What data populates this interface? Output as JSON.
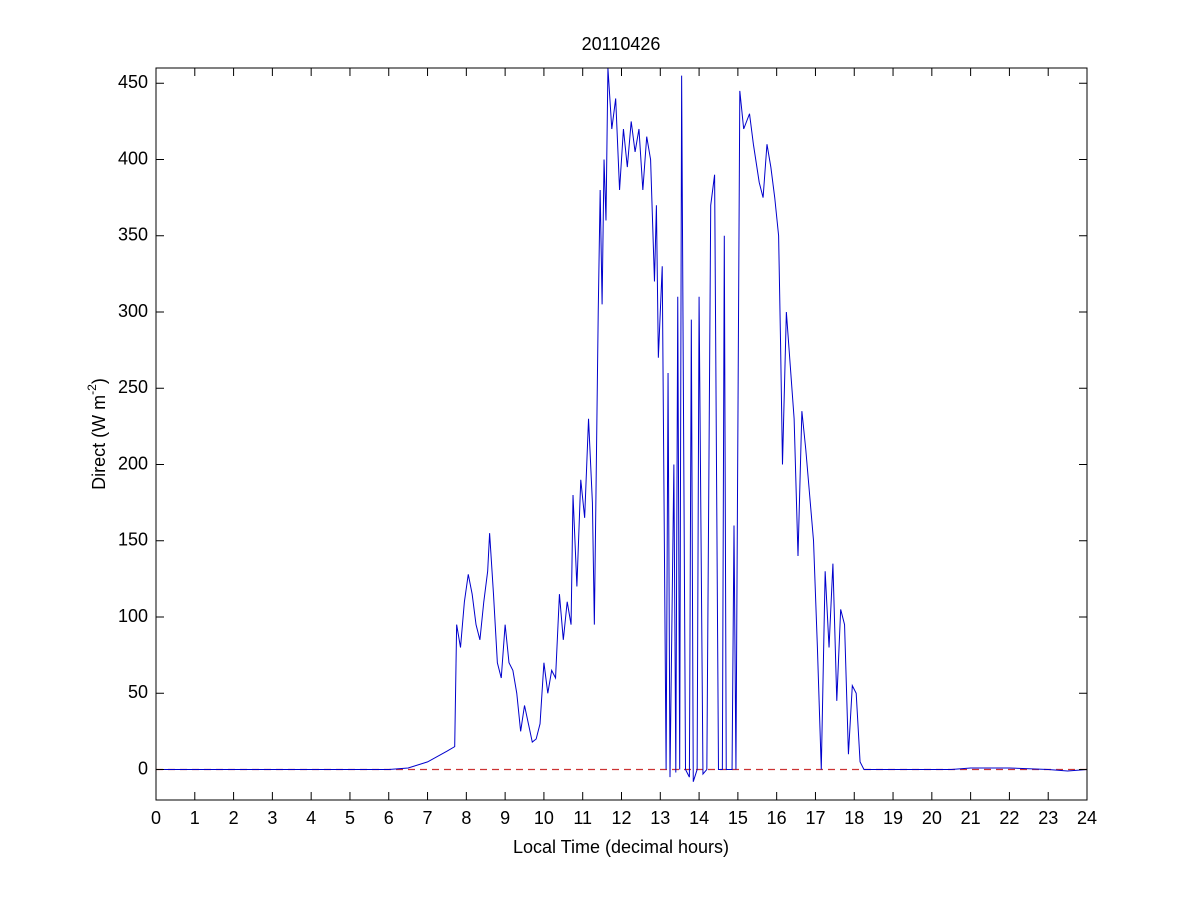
{
  "chart_data": {
    "type": "line",
    "title": "20110426",
    "xlabel": "Local Time (decimal hours)",
    "ylabel": [
      "Direct (W m",
      "-2",
      ")"
    ],
    "x": [
      0,
      6,
      6.5,
      7,
      7.5,
      7.7,
      7.75,
      7.85,
      7.95,
      8.05,
      8.15,
      8.25,
      8.35,
      8.45,
      8.55,
      8.6,
      8.7,
      8.8,
      8.9,
      9.0,
      9.1,
      9.2,
      9.3,
      9.4,
      9.5,
      9.6,
      9.7,
      9.8,
      9.9,
      10.0,
      10.1,
      10.2,
      10.3,
      10.4,
      10.5,
      10.6,
      10.7,
      10.75,
      10.85,
      10.95,
      11.05,
      11.15,
      11.25,
      11.3,
      11.4,
      11.45,
      11.5,
      11.55,
      11.6,
      11.65,
      11.75,
      11.85,
      11.95,
      12.05,
      12.15,
      12.25,
      12.35,
      12.45,
      12.55,
      12.65,
      12.75,
      12.85,
      12.9,
      12.95,
      13.05,
      13.15,
      13.2,
      13.25,
      13.35,
      13.4,
      13.45,
      13.5,
      13.55,
      13.65,
      13.75,
      13.8,
      13.85,
      13.95,
      14.0,
      14.1,
      14.2,
      14.3,
      14.4,
      14.5,
      14.6,
      14.65,
      14.7,
      14.85,
      14.9,
      14.95,
      15.05,
      15.15,
      15.3,
      15.4,
      15.55,
      15.65,
      15.75,
      15.85,
      15.95,
      16.05,
      16.1,
      16.15,
      16.25,
      16.35,
      16.45,
      16.55,
      16.65,
      16.75,
      16.85,
      16.95,
      17.05,
      17.15,
      17.25,
      17.35,
      17.45,
      17.55,
      17.65,
      17.75,
      17.85,
      17.95,
      18.05,
      18.15,
      18.25,
      20,
      20.5,
      21,
      22,
      23,
      23.5,
      24
    ],
    "series": [
      {
        "color": "#0000cc",
        "values": [
          0,
          0,
          1,
          5,
          12,
          15,
          95,
          80,
          110,
          128,
          115,
          95,
          85,
          110,
          130,
          155,
          115,
          70,
          60,
          95,
          70,
          65,
          50,
          25,
          42,
          30,
          18,
          20,
          30,
          70,
          50,
          65,
          60,
          115,
          85,
          110,
          95,
          180,
          120,
          190,
          165,
          230,
          175,
          95,
          300,
          380,
          305,
          400,
          360,
          460,
          420,
          440,
          380,
          420,
          395,
          425,
          405,
          420,
          380,
          415,
          400,
          320,
          370,
          270,
          330,
          0,
          260,
          -5,
          200,
          -2,
          310,
          0,
          455,
          0,
          -5,
          295,
          -8,
          0,
          310,
          -3,
          0,
          370,
          390,
          0,
          0,
          350,
          0,
          0,
          160,
          0,
          445,
          420,
          430,
          410,
          385,
          375,
          410,
          395,
          375,
          350,
          280,
          200,
          300,
          265,
          230,
          140,
          235,
          210,
          180,
          150,
          80,
          0,
          130,
          80,
          135,
          45,
          105,
          95,
          10,
          55,
          50,
          5,
          0,
          0,
          0,
          1,
          1,
          0,
          -1,
          0
        ]
      }
    ],
    "reference_line": {
      "value": 0,
      "color": "#cc3333",
      "style": "dashed"
    },
    "xlim": [
      0,
      24
    ],
    "xticks": [
      0,
      1,
      2,
      3,
      4,
      5,
      6,
      7,
      8,
      9,
      10,
      11,
      12,
      13,
      14,
      15,
      16,
      17,
      18,
      19,
      20,
      21,
      22,
      23,
      24
    ],
    "ylim": [
      -20,
      460
    ],
    "yticks": [
      0,
      50,
      100,
      150,
      200,
      250,
      300,
      350,
      400,
      450
    ]
  }
}
